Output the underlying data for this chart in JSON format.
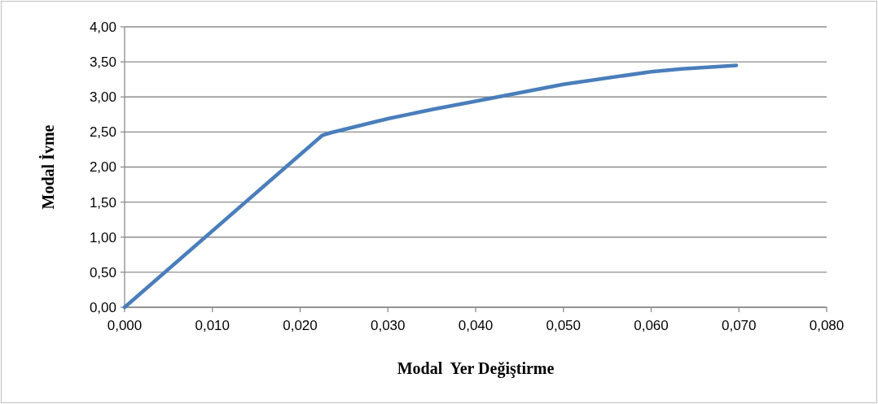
{
  "chart_data": {
    "type": "line",
    "xlabel": "Modal  Yer Değiştirme",
    "ylabel": "Modal İvme",
    "series": [
      {
        "color": "#4a7ebb",
        "x": [
          0,
          0.0225,
          0.0235,
          0.03,
          0.035,
          0.04,
          0.05,
          0.06,
          0.0635,
          0.0697
        ],
        "values": [
          0,
          2.45,
          2.49,
          2.69,
          2.82,
          2.94,
          3.18,
          3.36,
          3.4,
          3.45
        ]
      }
    ],
    "xlim": [
      0,
      0.08
    ],
    "ylim": [
      0,
      4
    ],
    "xticks": [
      {
        "value": 0,
        "label": "0,000"
      },
      {
        "value": 0.01,
        "label": "0,010"
      },
      {
        "value": 0.02,
        "label": "0,020"
      },
      {
        "value": 0.03,
        "label": "0,030"
      },
      {
        "value": 0.04,
        "label": "0,040"
      },
      {
        "value": 0.05,
        "label": "0,050"
      },
      {
        "value": 0.06,
        "label": "0,060"
      },
      {
        "value": 0.07,
        "label": "0,070"
      },
      {
        "value": 0.08,
        "label": "0,080"
      }
    ],
    "yticks": [
      {
        "value": 0,
        "label": "0,00"
      },
      {
        "value": 0.5,
        "label": "0,50"
      },
      {
        "value": 1,
        "label": "1,00"
      },
      {
        "value": 1.5,
        "label": "1,50"
      },
      {
        "value": 2,
        "label": "2,00"
      },
      {
        "value": 2.5,
        "label": "2,50"
      },
      {
        "value": 3,
        "label": "3,00"
      },
      {
        "value": 3.5,
        "label": "3,50"
      },
      {
        "value": 4,
        "label": "4,00"
      }
    ],
    "grid": "y",
    "marker": "none",
    "line_style": "solid"
  }
}
